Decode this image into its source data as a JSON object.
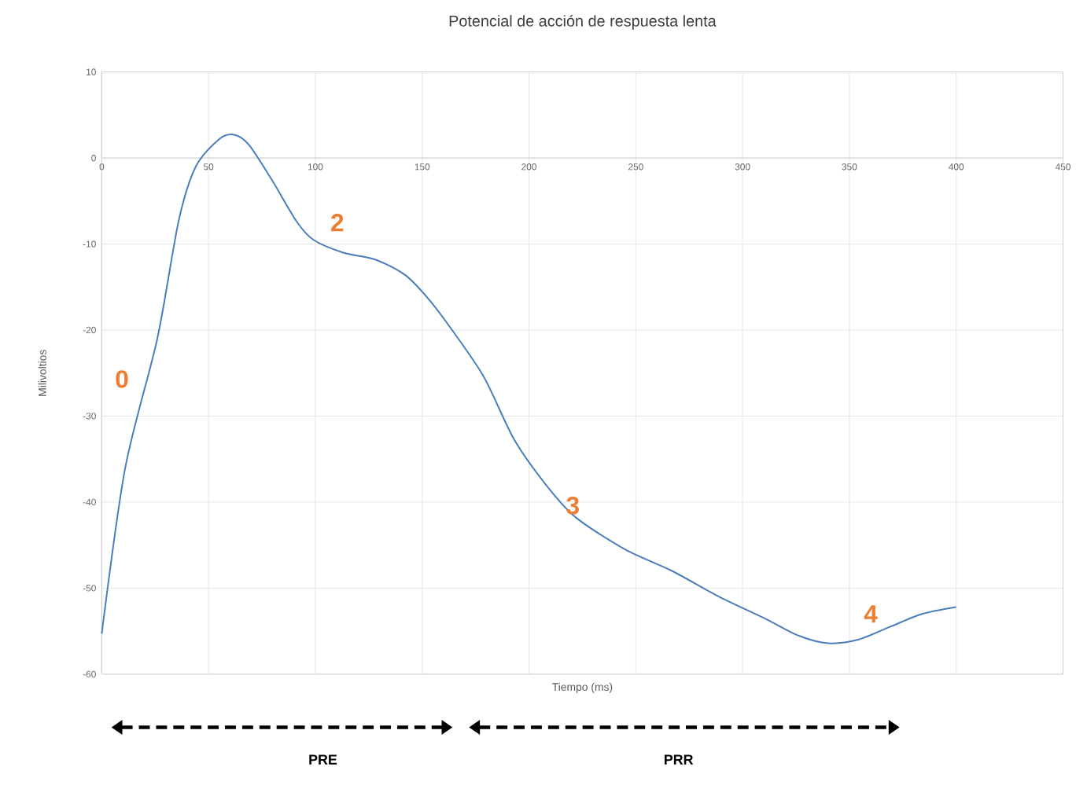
{
  "chart_data": {
    "type": "line",
    "title": "Potencial de acción de respuesta lenta",
    "xlabel": "Tiempo (ms)",
    "ylabel": "Milivoltios",
    "xlim": [
      0,
      450
    ],
    "xticks": [
      0,
      50,
      100,
      150,
      200,
      250,
      300,
      350,
      400,
      450
    ],
    "ylim": [
      -60,
      10
    ],
    "yticks": [
      -60,
      -50,
      -40,
      -30,
      -20,
      -10,
      0,
      10
    ],
    "grid": true,
    "marker": "none",
    "line_style": "solid",
    "series": [
      {
        "color": "#4a7ebb",
        "x": [
          0,
          11,
          26,
          36,
          44,
          55,
          62,
          69,
          80,
          91,
          99,
          113,
          128,
          142,
          153,
          164,
          179,
          193,
          208,
          222,
          245,
          267,
          289,
          311,
          326,
          340,
          354,
          369,
          384,
          400
        ],
        "values": [
          -55.3,
          -36,
          -21,
          -7.3,
          -1,
          2.2,
          2.7,
          1.5,
          -2.7,
          -7.3,
          -9.5,
          -11,
          -11.8,
          -13.6,
          -16.4,
          -20,
          -25.5,
          -32.7,
          -38,
          -41.8,
          -45.5,
          -48,
          -51,
          -53.6,
          -55.5,
          -56.4,
          -56,
          -54.5,
          -53,
          -52.2
        ]
      }
    ],
    "annotations": [
      "0",
      "2",
      "3",
      "4",
      "PRE",
      "PRR"
    ]
  }
}
